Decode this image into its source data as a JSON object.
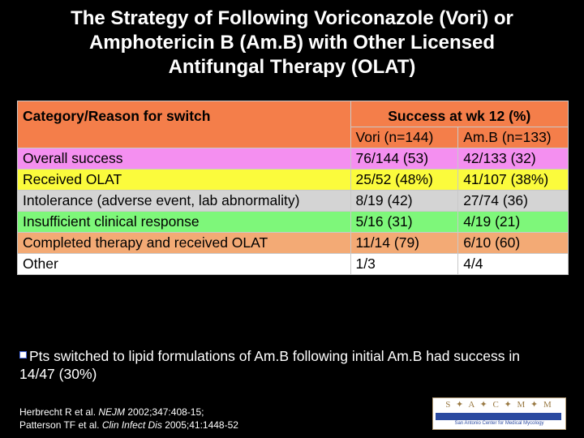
{
  "title": {
    "line1": "The Strategy of Following Voriconazole (Vori) or",
    "line2": "Amphotericin B (Am.B) with Other Licensed",
    "line3": "Antifungal Therapy (OLAT)"
  },
  "table": {
    "header_category": "Category/Reason for switch",
    "header_success": "Success at wk 12 (%)",
    "col_vori": "Vori (n=144)",
    "col_amb": "Am.B (n=133)",
    "rows": [
      {
        "category": "Overall success",
        "vori": "76/144 (53)",
        "amb": "42/133 (32)",
        "color": "#f48ff0"
      },
      {
        "category": "Received OLAT",
        "vori": "25/52 (48%)",
        "amb": "41/107 (38%)",
        "color": "#fbfb3c"
      },
      {
        "category": "Intolerance (adverse event, lab abnormality)",
        "vori": "8/19 (42)",
        "amb": "27/74 (36)",
        "color": "#d4d4d4"
      },
      {
        "category": "Insufficient clinical response",
        "vori": "5/16 (31)",
        "amb": "4/19 (21)",
        "color": "#7ef77a"
      },
      {
        "category": "Completed therapy and received OLAT",
        "vori": "11/14 (79)",
        "amb": "6/10 (60)",
        "color": "#f3aa75"
      },
      {
        "category": "Other",
        "vori": "1/3",
        "amb": "4/4",
        "color": "#ffffff"
      }
    ]
  },
  "note": "Pts switched to lipid formulations of Am.B following initial Am.B had success in 14/47 (30%)",
  "references": {
    "ref1_authors": "Herbrecht R et al. ",
    "ref1_journal": "NEJM",
    "ref1_rest": " 2002;347:408-15;",
    "ref2_authors": "Patterson TF et al. ",
    "ref2_journal": "Clin Infect Dis",
    "ref2_rest": " 2005;41:1448-52"
  },
  "logo": {
    "letters": "S ✦ A ✦ C ✦ M ✦ M",
    "subtitle": "San Antonio Center for Medical Mycology"
  },
  "colors": {
    "header": "#f47e4a",
    "background": "#000000"
  }
}
